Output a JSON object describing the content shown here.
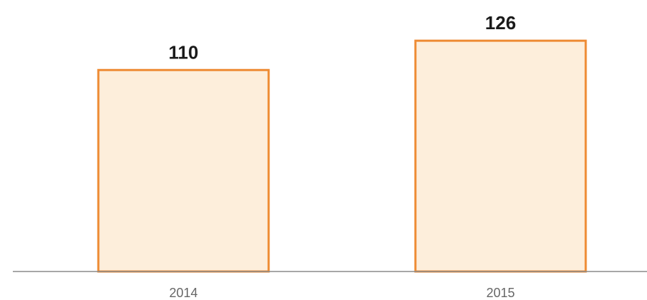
{
  "chart_data": {
    "type": "bar",
    "title": "",
    "xlabel": "",
    "ylabel": "",
    "categories": [
      "2014",
      "2015"
    ],
    "values": [
      110,
      126
    ],
    "ylim": [
      0,
      135
    ],
    "grid": false,
    "legend": "none",
    "colors": {
      "bar_fill": "#fdeedb",
      "bar_stroke": "#ee8b33",
      "axis_line": "#8a8a8a",
      "value_label": "#1a1a1a",
      "tick_label": "#666666"
    }
  }
}
